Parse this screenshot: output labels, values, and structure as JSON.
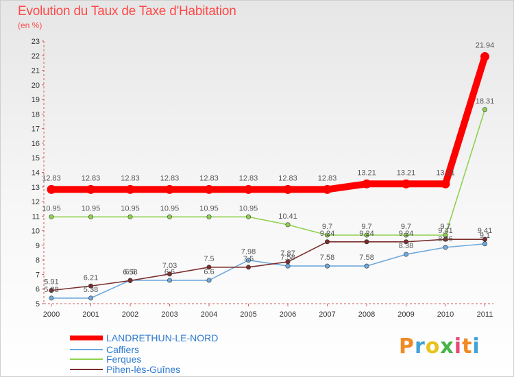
{
  "title": "Evolution du Taux de Taxe d'Habitation",
  "subtitle": "(en %)",
  "logo": "Proxiti",
  "chart_data": {
    "type": "line",
    "title": "Evolution du Taux de Taxe d'Habitation",
    "ylabel": "(en %)",
    "xlabel": "",
    "x": [
      "2000",
      "2001",
      "2002",
      "2003",
      "2004",
      "2005",
      "2006",
      "2007",
      "2008",
      "2009",
      "2010",
      "2011"
    ],
    "ylim": [
      5,
      23
    ],
    "yticks": [
      5,
      6,
      7,
      8,
      9,
      10,
      11,
      12,
      13,
      14,
      15,
      16,
      17,
      18,
      19,
      20,
      21,
      22,
      23
    ],
    "grid": false,
    "legend_position": "bottom-left",
    "series": [
      {
        "name": "LANDRETHUN-LE-NORD",
        "color": "#ff0000",
        "values": [
          12.83,
          12.83,
          12.83,
          12.83,
          12.83,
          12.83,
          12.83,
          12.83,
          13.21,
          13.21,
          13.21,
          21.94
        ],
        "labels": [
          "12.83",
          "12.83",
          "12.83",
          "12.83",
          "12.83",
          "12.83",
          "12.83",
          "12.83",
          "13.21",
          "13.21",
          "13.21",
          "21.94"
        ]
      },
      {
        "name": "Caffiers",
        "color": "#6fa8dc",
        "values": [
          5.38,
          5.38,
          6.6,
          6.6,
          6.6,
          7.98,
          7.58,
          7.58,
          7.58,
          8.38,
          8.86,
          9.1
        ],
        "labels": [
          "5.38",
          "5.38",
          "6.6",
          "6.6",
          "6.6",
          "7.98",
          "7.58",
          "7.58",
          "7.58",
          "8.38",
          "8.86",
          "9.1"
        ]
      },
      {
        "name": "Ferques",
        "color": "#8fd14f",
        "values": [
          10.95,
          10.95,
          10.95,
          10.95,
          10.95,
          10.95,
          10.41,
          9.7,
          9.7,
          9.7,
          9.7,
          18.31
        ],
        "labels": [
          "10.95",
          "10.95",
          "10.95",
          "10.95",
          "10.95",
          "10.95",
          "10.41",
          "9.7",
          "9.7",
          "9.7",
          "9.7",
          "18.31"
        ]
      },
      {
        "name": "Pihen-lès-Guînes",
        "color": "#7b2d2d",
        "values": [
          5.91,
          6.21,
          6.58,
          7.03,
          7.5,
          7.5,
          7.87,
          9.24,
          9.24,
          9.24,
          9.41,
          9.41
        ],
        "labels": [
          "5.91",
          "6.21",
          "6.58",
          "7.03",
          "7.5",
          "7.5",
          "7.87",
          "9.24",
          "9.24",
          "9.24",
          "9.41",
          "9.41"
        ]
      }
    ]
  }
}
